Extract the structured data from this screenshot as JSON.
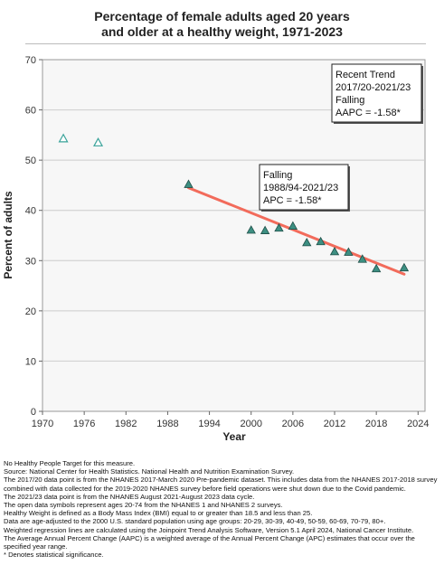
{
  "title": "Percentage of female adults aged 20 years and older at a healthy weight, 1971-2023",
  "chart_data": {
    "type": "scatter",
    "title": "Percentage of female adults aged 20 years and older at a healthy weight, 1971-2023",
    "xlabel": "Year",
    "ylabel": "Percent of adults",
    "xlim": [
      1970,
      2025
    ],
    "ylim": [
      0,
      70
    ],
    "x_ticks": [
      "1970",
      "1976",
      "1982",
      "1988",
      "1994",
      "2000",
      "2006",
      "2012",
      "2018",
      "2024"
    ],
    "y_ticks": [
      "0",
      "10",
      "20",
      "30",
      "40",
      "50",
      "60",
      "70"
    ],
    "grid": "horizontal",
    "open_points": [
      {
        "x": 1973,
        "y": 54.3
      },
      {
        "x": 1978,
        "y": 53.5
      }
    ],
    "filled_points": [
      {
        "x": 1991,
        "y": 45.2
      },
      {
        "x": 2000,
        "y": 36.1
      },
      {
        "x": 2002,
        "y": 36.0
      },
      {
        "x": 2004,
        "y": 36.5
      },
      {
        "x": 2006,
        "y": 36.9
      },
      {
        "x": 2008,
        "y": 33.6
      },
      {
        "x": 2010,
        "y": 33.8
      },
      {
        "x": 2012,
        "y": 31.8
      },
      {
        "x": 2014,
        "y": 31.7
      },
      {
        "x": 2016,
        "y": 30.3
      },
      {
        "x": 2018,
        "y": 28.4
      },
      {
        "x": 2022,
        "y": 28.6
      }
    ],
    "trend_line": {
      "x": [
        1991,
        2022
      ],
      "y": [
        44.5,
        27.3
      ],
      "color": "#f26b5b"
    },
    "annotations": [
      {
        "lines": [
          "Recent Trend",
          "2017/20-2021/23",
          "Falling",
          "AAPC = -1.58*"
        ],
        "anchor": {
          "x": 2021,
          "y": 70
        }
      },
      {
        "lines": [
          "Falling",
          "1988/94-2021/23",
          "APC = -1.58*"
        ],
        "anchor": {
          "x": 1999,
          "y": 50
        }
      }
    ]
  },
  "colors": {
    "filled_marker": "#3d8f82",
    "open_marker": "#3aa39a",
    "trend": "#f26b5b",
    "plot_bg": "#f7f7f7",
    "grid": "#cccccc"
  },
  "notes": [
    "No Healthy People Target for this measure.",
    "Source: National Center for Health Statistics. National Health and Nutrition Examination Survey.",
    "The 2017/20 data point is from the NHANES 2017-March 2020 Pre-pandemic dataset. This includes data from the NHANES 2017-2018 survey combined with data collected for the 2019-2020 NHANES survey before field operations were shut down due to the Covid pandemic.",
    "The 2021/23 data point is from the NHANES August 2021-August 2023 data cycle.",
    "The open data symbols represent ages 20-74 from the NHANES 1 and NHANES 2 surveys.",
    "Healthy Weight is defined as a Body Mass Index (BMI) equal to or greater than 18.5 and less than 25.",
    "Data are age-adjusted to the 2000 U.S. standard population using age groups: 20-29, 30-39, 40-49, 50-59, 60-69, 70-79, 80+.",
    "Weighted regression lines are calculated using the Joinpoint Trend Analysis Software, Version 5.1 April 2024, National Cancer Institute.",
    "The Average Annual Percent Change (AAPC) is a weighted average of the Annual Percent Change (APC) estimates that occur over the specified year range.",
    "* Denotes statistical significance."
  ]
}
